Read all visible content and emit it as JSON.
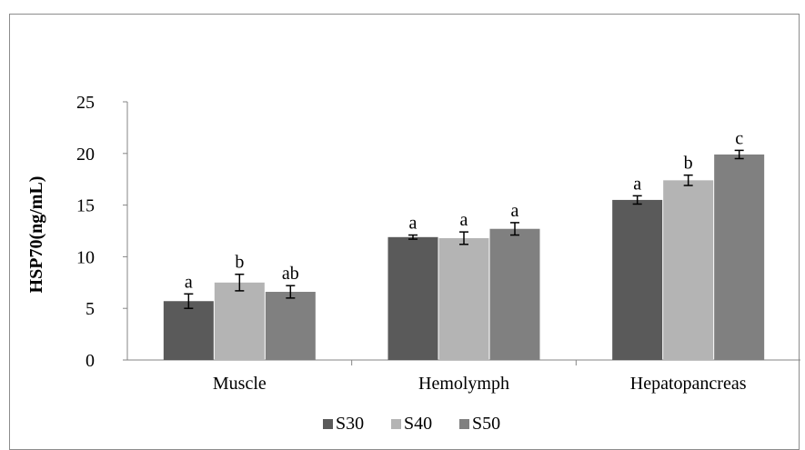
{
  "chart_data": {
    "type": "bar",
    "title": "",
    "xlabel": "",
    "ylabel": "HSP70(ng/mL)",
    "ylim": [
      0,
      25
    ],
    "yticks": [
      0,
      5,
      10,
      15,
      20,
      25
    ],
    "grid": false,
    "legend_position": "bottom",
    "categories": [
      "Muscle",
      "Hemolymph",
      "Hepatopancreas"
    ],
    "series": [
      {
        "name": "S30",
        "color": "#5a5a5a",
        "values": [
          5.7,
          11.9,
          15.5
        ],
        "errors": [
          0.7,
          0.2,
          0.4
        ],
        "letters": [
          "a",
          "a",
          "a"
        ]
      },
      {
        "name": "S40",
        "color": "#b4b4b4",
        "values": [
          7.5,
          11.8,
          17.4
        ],
        "errors": [
          0.8,
          0.6,
          0.5
        ],
        "letters": [
          "b",
          "a",
          "b"
        ]
      },
      {
        "name": "S50",
        "color": "#808080",
        "values": [
          6.6,
          12.7,
          19.9
        ],
        "errors": [
          0.6,
          0.6,
          0.4
        ],
        "letters": [
          "ab",
          "a",
          "c"
        ]
      }
    ]
  }
}
